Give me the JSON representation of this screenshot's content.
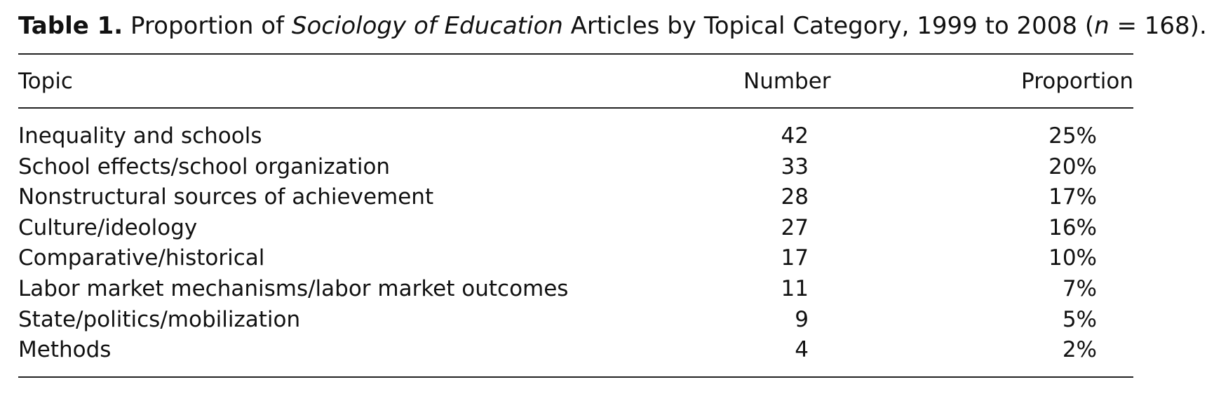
{
  "caption": {
    "label": "Table 1.",
    "text_before_italic": "Proportion of ",
    "italic": "Sociology of Education",
    "text_after_italic": " Articles by Topical Category, 1999 to 2008 (",
    "n_italic": "n",
    "n_rest": " = 168)."
  },
  "table": {
    "columns": [
      "Topic",
      "Number",
      "Proportion"
    ],
    "rows": [
      {
        "topic": "Inequality and schools",
        "number": "42",
        "proportion": "25%"
      },
      {
        "topic": "School effects/school organization",
        "number": "33",
        "proportion": "20%"
      },
      {
        "topic": "Nonstructural sources of achievement",
        "number": "28",
        "proportion": "17%"
      },
      {
        "topic": "Culture/ideology",
        "number": "27",
        "proportion": "16%"
      },
      {
        "topic": "Comparative/historical",
        "number": "17",
        "proportion": "10%"
      },
      {
        "topic": "Labor market mechanisms/labor market outcomes",
        "number": "11",
        "proportion": "7%"
      },
      {
        "topic": "State/politics/mobilization",
        "number": "9",
        "proportion": "5%"
      },
      {
        "topic": "Methods",
        "number": "4",
        "proportion": "2%"
      }
    ]
  }
}
